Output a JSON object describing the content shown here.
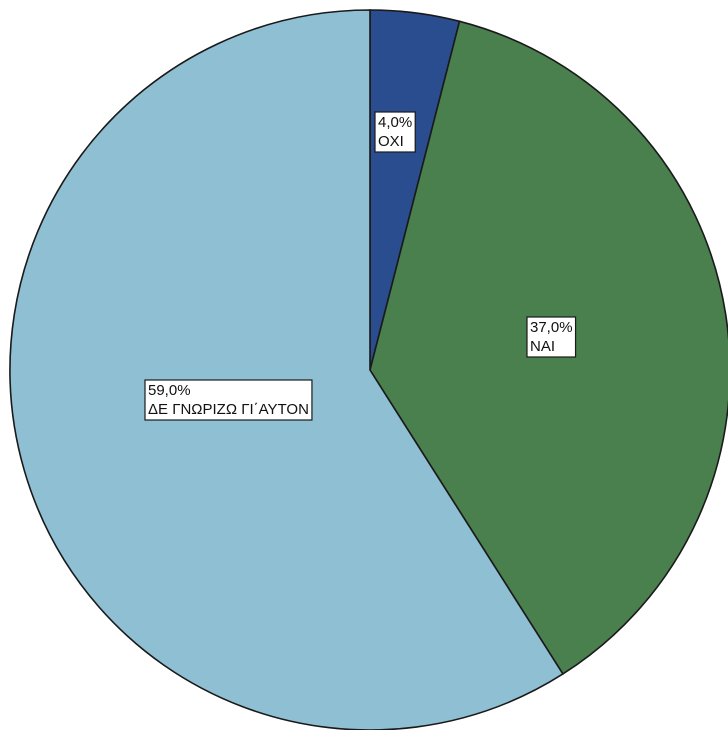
{
  "chart_data": {
    "type": "pie",
    "slices": [
      {
        "label": "ΟΧΙ",
        "value": 4.0,
        "value_label": "4,0%",
        "color": "#2a4d8f"
      },
      {
        "label": "ΝΑΙ",
        "value": 37.0,
        "value_label": "37,0%",
        "color": "#4a7f4e"
      },
      {
        "label": "ΔΕ ΓΝΩΡΙΖΩ ΓΙ΄ΑΥΤΟΝ",
        "value": 59.0,
        "value_label": "59,0%",
        "color": "#8ebfd3"
      }
    ],
    "start_angle": "12 o'clock",
    "direction": "clockwise",
    "legend": "none"
  }
}
